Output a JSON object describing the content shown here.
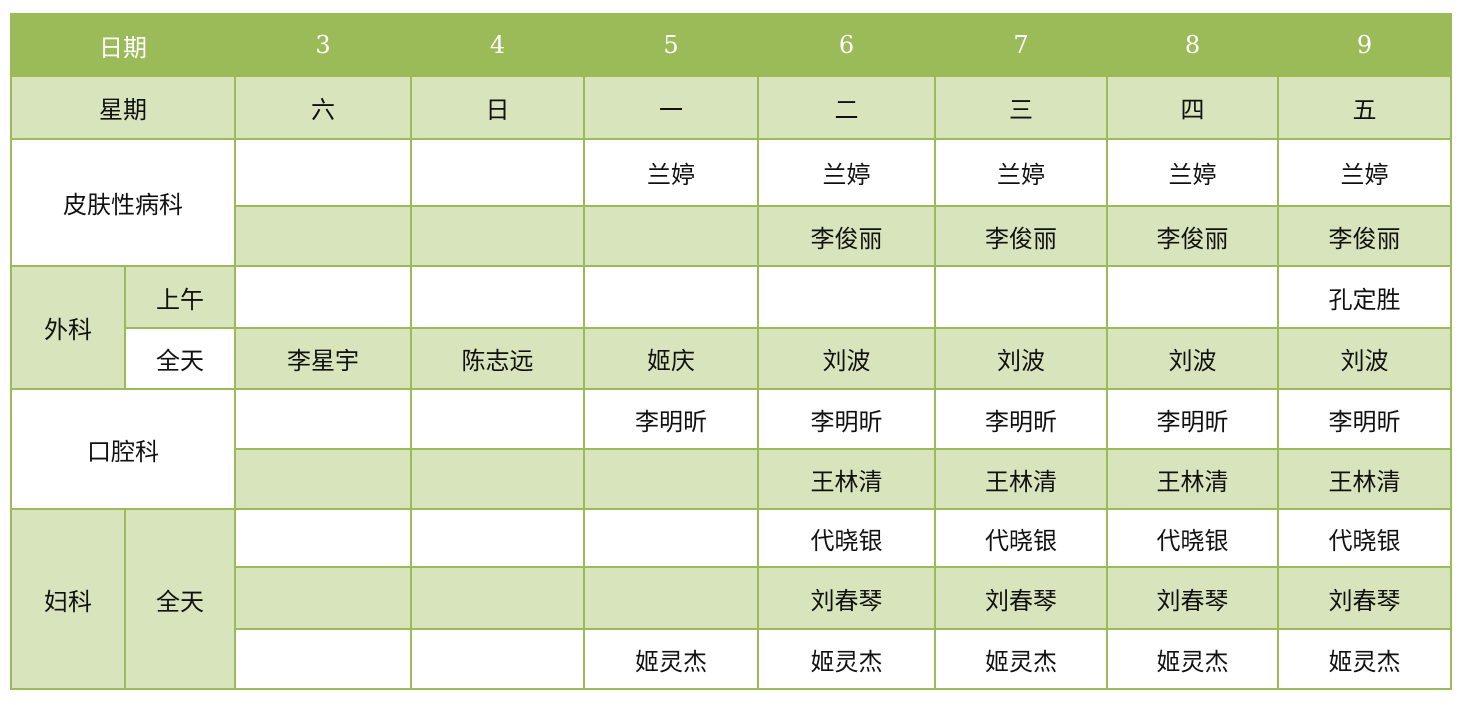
{
  "colors": {
    "header": "#9bbb59",
    "shade": "#d7e4bc",
    "border": "#9bbb59"
  },
  "header": {
    "label": "日期",
    "dates": [
      "3",
      "4",
      "5",
      "6",
      "7",
      "8",
      "9"
    ]
  },
  "weekday": {
    "label": "星期",
    "days": [
      "六",
      "日",
      "一",
      "二",
      "三",
      "四",
      "五"
    ]
  },
  "departments": {
    "derm": "皮肤性病科",
    "surgery": "外科",
    "surgery_am": "上午",
    "surgery_full": "全天",
    "dental": "口腔科",
    "gyn": "妇科",
    "gyn_full": "全天"
  },
  "rows": [
    {
      "shade": "w",
      "cells": [
        "",
        "",
        "兰婷",
        "兰婷",
        "兰婷",
        "兰婷",
        "兰婷"
      ]
    },
    {
      "shade": "g",
      "cells": [
        "",
        "",
        "",
        "李俊丽",
        "李俊丽",
        "李俊丽",
        "李俊丽"
      ]
    },
    {
      "shade": "w",
      "cells": [
        "",
        "",
        "",
        "",
        "",
        "",
        "孔定胜"
      ]
    },
    {
      "shade": "g",
      "cells": [
        "李星宇",
        "陈志远",
        "姬庆",
        "刘波",
        "刘波",
        "刘波",
        "刘波"
      ]
    },
    {
      "shade": "w",
      "cells": [
        "",
        "",
        "李明昕",
        "李明昕",
        "李明昕",
        "李明昕",
        "李明昕"
      ]
    },
    {
      "shade": "g",
      "cells": [
        "",
        "",
        "",
        "王林清",
        "王林清",
        "王林清",
        "王林清"
      ]
    },
    {
      "shade": "w",
      "cells": [
        "",
        "",
        "",
        "代晓银",
        "代晓银",
        "代晓银",
        "代晓银"
      ]
    },
    {
      "shade": "g",
      "cells": [
        "",
        "",
        "",
        "刘春琴",
        "刘春琴",
        "刘春琴",
        "刘春琴"
      ]
    },
    {
      "shade": "w",
      "cells": [
        "",
        "",
        "姬灵杰",
        "姬灵杰",
        "姬灵杰",
        "姬灵杰",
        "姬灵杰"
      ]
    }
  ]
}
